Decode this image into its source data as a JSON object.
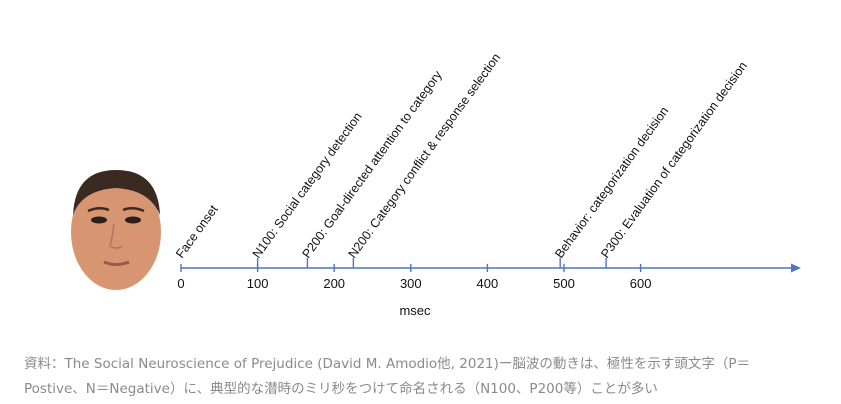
{
  "timeline": {
    "axis_label": "msec",
    "ticks": [
      0,
      100,
      200,
      300,
      400,
      500,
      600
    ],
    "events": [
      {
        "time": 0,
        "label": "Face onset"
      },
      {
        "time": 100,
        "label": "N100: Social category detection"
      },
      {
        "time": 165,
        "label": "P200: Goal-directed attention to category"
      },
      {
        "time": 225,
        "label": "N200: Category conflict & response selection"
      },
      {
        "time": 495,
        "label": "Behavior: categorization decision"
      },
      {
        "time": 555,
        "label": "P300: Evaluation of categorization decision"
      }
    ],
    "colors": {
      "axis": "#4f74c4",
      "text": "#111111",
      "face_skin": "#d89572"
    }
  },
  "caption": {
    "line1": "資料：The Social Neuroscience of Prejudice (David M. Amodio他, 2021)ー脳波の動きは、極性を示す頭文字（P＝",
    "line2": "Postive、N＝Negative）に、典型的な潜時のミリ秒をつけて命名される（N100、P200等）ことが多い"
  }
}
